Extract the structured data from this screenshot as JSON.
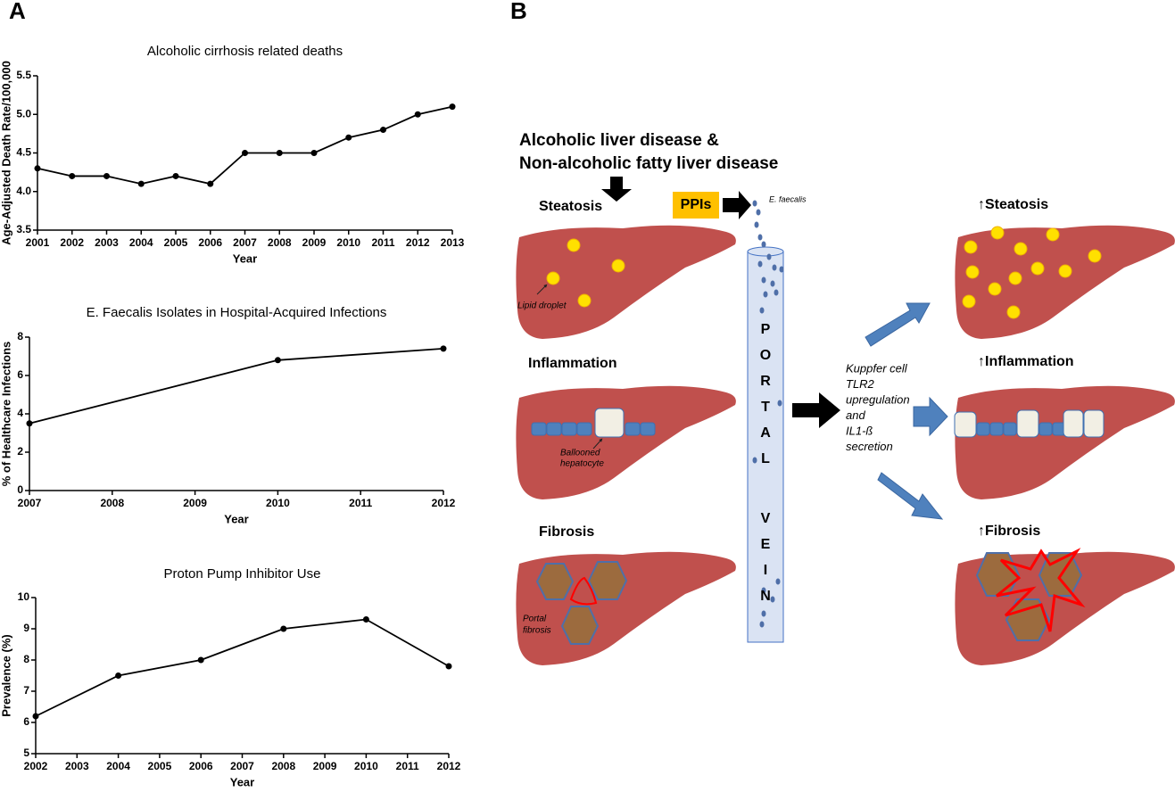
{
  "panels": [
    "A",
    "B"
  ],
  "chart_data": [
    {
      "type": "line",
      "title": "Alcoholic cirrhosis related deaths",
      "xlabel": "Year",
      "ylabel": "Age-Adjusted Death Rate/100,000",
      "x": [
        2001,
        2002,
        2003,
        2004,
        2005,
        2006,
        2007,
        2008,
        2009,
        2010,
        2011,
        2012,
        2013
      ],
      "values": [
        4.3,
        4.2,
        4.2,
        4.1,
        4.2,
        4.1,
        4.5,
        4.5,
        4.5,
        4.7,
        4.8,
        5.0,
        5.1
      ],
      "color": "#000000",
      "xlim": [
        2001,
        2013
      ],
      "xticks": [
        2001,
        2002,
        2003,
        2004,
        2005,
        2006,
        2007,
        2008,
        2009,
        2010,
        2011,
        2012,
        2013
      ],
      "ylim": [
        3.5,
        5.5
      ],
      "yticks": [
        3.5,
        {
          "value": 4,
          "label": "4.0"
        },
        4.5,
        {
          "value": 5,
          "label": "5.0"
        },
        5.5
      ]
    },
    {
      "type": "line",
      "title": "E. Faecalis Isolates in Hospital-Acquired Infections",
      "xlabel": "Year",
      "ylabel": "% of Healthcare Infections",
      "x": [
        2007,
        2010,
        2012
      ],
      "values": [
        3.5,
        6.8,
        7.4
      ],
      "color": "#000000",
      "xlim": [
        2007,
        2012
      ],
      "xticks": [
        2007,
        2008,
        2009,
        2010,
        2011,
        2012
      ],
      "ylim": [
        0,
        8
      ],
      "yticks": [
        0,
        2,
        4,
        6,
        8
      ]
    },
    {
      "type": "line",
      "title": "Proton Pump Inhibitor Use",
      "xlabel": "Year",
      "ylabel": "Prevalence (%)",
      "x": [
        2002,
        2004,
        2006,
        2008,
        2010,
        2012
      ],
      "values": [
        6.2,
        7.5,
        8,
        9,
        9.3,
        7.8
      ],
      "color": "#000000",
      "xlim": [
        2002,
        2012
      ],
      "xticks": [
        2002,
        2003,
        2004,
        2005,
        2006,
        2007,
        2008,
        2009,
        2010,
        2011,
        2012
      ],
      "ylim": [
        5,
        10
      ],
      "yticks": [
        5,
        6,
        7,
        8,
        9,
        10
      ]
    }
  ],
  "diagram": {
    "header": [
      "Alcoholic liver disease &",
      "Non-alcoholic fatty liver disease"
    ],
    "stages": [
      "Steatosis",
      "Inflammation",
      "Fibrosis"
    ],
    "outcomes": [
      "↑Steatosis",
      "↑Inflammation",
      "↑Fibrosis"
    ],
    "ppis": "PPIs",
    "bacterium": "E. faecalis",
    "lipid": "Lipid droplet",
    "ballooned": [
      "Ballooned",
      "hepatocyte"
    ],
    "portal_fibrosis": [
      "Portal",
      "fibrosis"
    ],
    "vein": [
      "P",
      "O",
      "R",
      "T",
      "A",
      "L",
      "V",
      "E",
      "I",
      "N"
    ],
    "mechanism": [
      "Kuppfer cell",
      "TLR2",
      "upregulation",
      "and",
      "IL1-ß",
      "secretion"
    ]
  }
}
